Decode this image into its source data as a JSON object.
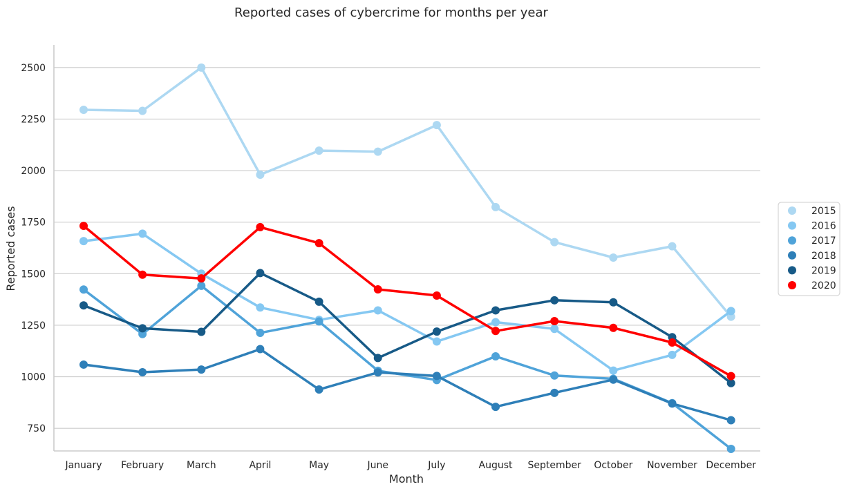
{
  "chart_data": {
    "type": "line",
    "title": "Reported cases of cybercrime for months per year",
    "xlabel": "Month",
    "ylabel": "Reported cases",
    "categories": [
      "January",
      "February",
      "March",
      "April",
      "May",
      "June",
      "July",
      "August",
      "September",
      "October",
      "November",
      "December"
    ],
    "yticks": [
      750,
      1000,
      1250,
      1500,
      1750,
      2000,
      2250,
      2500
    ],
    "ylim": [
      640,
      2610
    ],
    "grid": "horizontal",
    "legend_position": "right",
    "series": [
      {
        "name": "2015",
        "color": "#add8f2",
        "values": [
          2295,
          2290,
          2500,
          1980,
          2097,
          2092,
          2221,
          1823,
          1653,
          1578,
          1633,
          1291
        ]
      },
      {
        "name": "2016",
        "color": "#85c8f2",
        "values": [
          1658,
          1694,
          1500,
          1336,
          1276,
          1322,
          1171,
          1265,
          1232,
          1030,
          1106,
          1319
        ]
      },
      {
        "name": "2017",
        "color": "#4fa3d9",
        "values": [
          1423,
          1207,
          1441,
          1213,
          1268,
          1029,
          984,
          1099,
          1006,
          990,
          872,
          650
        ]
      },
      {
        "name": "2018",
        "color": "#2e7fb8",
        "values": [
          1059,
          1022,
          1035,
          1134,
          938,
          1021,
          1004,
          854,
          922,
          986,
          870,
          789
        ]
      },
      {
        "name": "2019",
        "color": "#175a87",
        "values": [
          1346,
          1235,
          1218,
          1503,
          1364,
          1091,
          1219,
          1322,
          1371,
          1361,
          1192,
          969
        ]
      },
      {
        "name": "2020",
        "color": "#ff0000",
        "values": [
          1732,
          1495,
          1477,
          1726,
          1648,
          1424,
          1394,
          1222,
          1270,
          1237,
          1166,
          1003
        ]
      }
    ]
  }
}
